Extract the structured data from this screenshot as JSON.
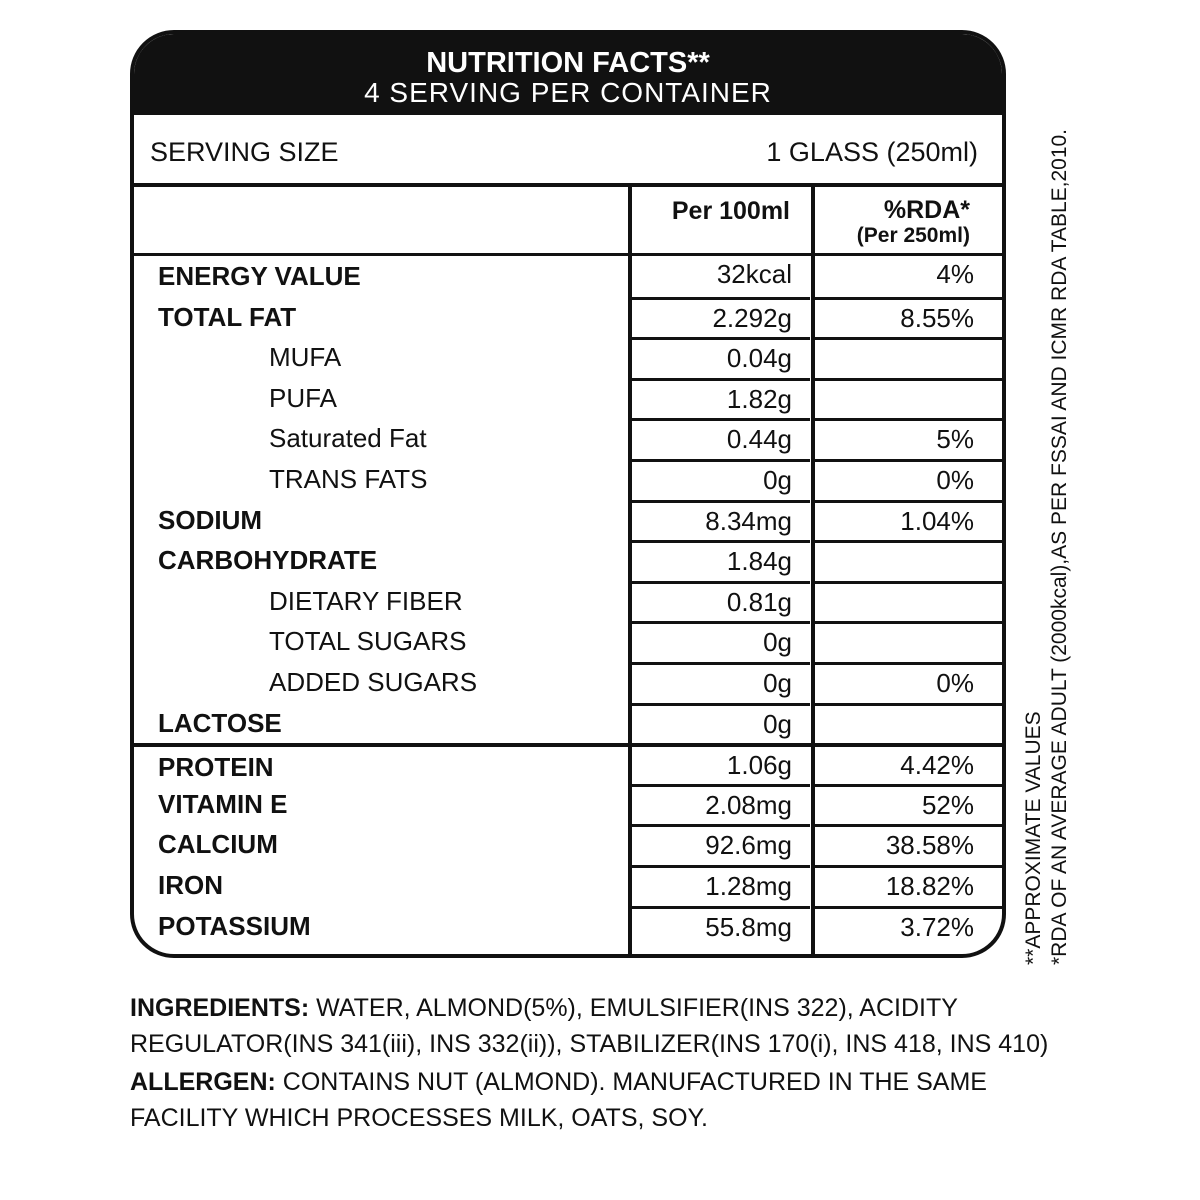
{
  "header": {
    "title": "NUTRITION FACTS**",
    "subtitle": "4 SERVING PER CONTAINER"
  },
  "serving": {
    "label": "SERVING SIZE",
    "value": "1 GLASS (250ml)"
  },
  "columns": {
    "per100": "Per 100ml",
    "rda": "%RDA*",
    "rda_sub": "(Per 250ml)"
  },
  "rows": [
    {
      "label": "ENERGY VALUE",
      "per100": "32kcal",
      "rda": "4%"
    },
    {
      "label": "TOTAL FAT",
      "per100": "2.292g",
      "rda": "8.55%"
    },
    {
      "label": "MUFA",
      "per100": "0.04g",
      "rda": ""
    },
    {
      "label": "PUFA",
      "per100": "1.82g",
      "rda": ""
    },
    {
      "label": "Saturated Fat",
      "per100": "0.44g",
      "rda": "5%"
    },
    {
      "label": "TRANS FATS",
      "per100": "0g",
      "rda": "0%"
    },
    {
      "label": "SODIUM",
      "per100": "8.34mg",
      "rda": "1.04%"
    },
    {
      "label": "CARBOHYDRATE",
      "per100": "1.84g",
      "rda": ""
    },
    {
      "label": "DIETARY FIBER",
      "per100": "0.81g",
      "rda": ""
    },
    {
      "label": "TOTAL SUGARS",
      "per100": "0g",
      "rda": ""
    },
    {
      "label": "ADDED SUGARS",
      "per100": "0g",
      "rda": "0%"
    },
    {
      "label": "LACTOSE",
      "per100": "0g",
      "rda": ""
    },
    {
      "label": "PROTEIN",
      "per100": "1.06g",
      "rda": "4.42%"
    },
    {
      "label": "VITAMIN E",
      "per100": "2.08mg",
      "rda": "52%"
    },
    {
      "label": "CALCIUM",
      "per100": "92.6mg",
      "rda": "38.58%"
    },
    {
      "label": "IRON",
      "per100": "1.28mg",
      "rda": "18.82%"
    },
    {
      "label": "POTASSIUM",
      "per100": "55.8mg",
      "rda": "3.72%"
    }
  ],
  "footnotes": {
    "approx": "**APPROXIMATE VALUES",
    "rda": "*RDA OF AN AVERAGE ADULT (2000kcal),AS PER FSSAI AND ICMR RDA TABLE,2010."
  },
  "ingredients": {
    "label": "INGREDIENTS:",
    "text": " WATER, ALMOND(5%), EMULSIFIER(INS 322), ACIDITY REGULATOR(INS 341(iii), INS 332(ii)), STABILIZER(INS 170(i), INS 418, INS 410)"
  },
  "allergen": {
    "label": "ALLERGEN:",
    "text": " CONTAINS NUT (ALMOND). MANUFACTURED IN THE SAME FACILITY WHICH PROCESSES MILK, OATS, SOY."
  }
}
